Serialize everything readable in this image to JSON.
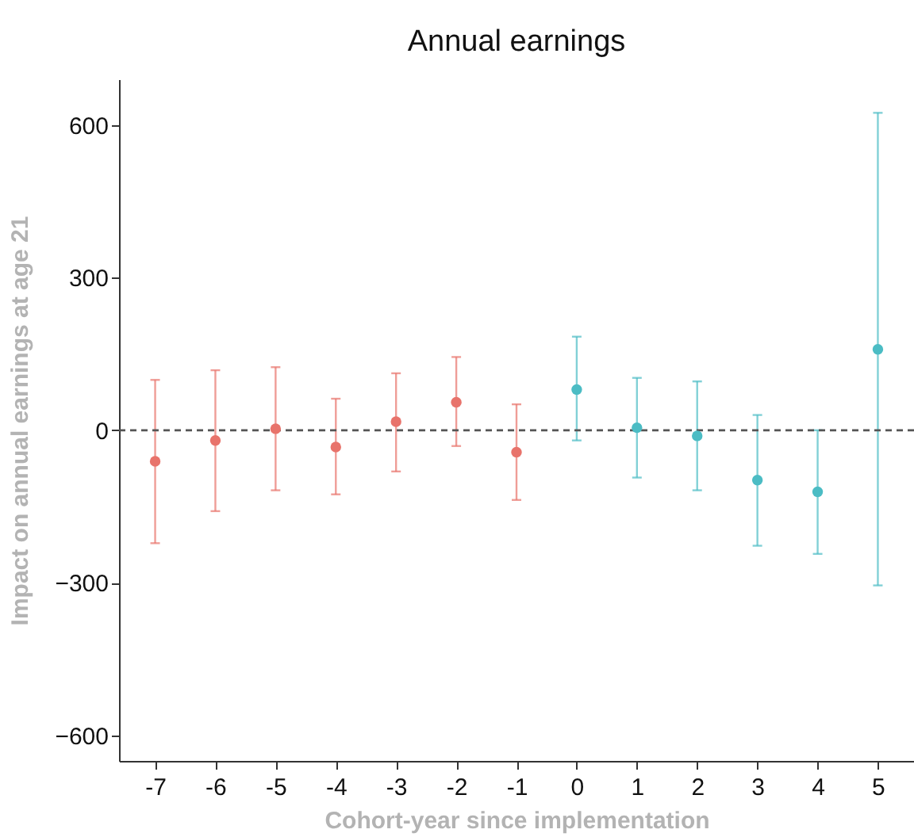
{
  "chart_data": {
    "type": "scatter",
    "title": "Annual earnings",
    "xlabel": "Cohort-year since implementation",
    "ylabel": "Impact on annual earnings at age 21",
    "categories": [
      "-7",
      "-6",
      "-5",
      "-4",
      "-3",
      "-2",
      "-1",
      "0",
      "1",
      "2",
      "3",
      "4",
      "5"
    ],
    "series": [
      {
        "color": "#e8736b",
        "values": [
          -61,
          -20,
          3,
          -33,
          17,
          55,
          -43,
          null,
          null,
          null,
          null,
          null,
          null
        ],
        "errors": [
          [
            -222,
            99
          ],
          [
            -159,
            118
          ],
          [
            -118,
            124
          ],
          [
            -126,
            62
          ],
          [
            -81,
            112
          ],
          [
            -31,
            144
          ],
          [
            -137,
            51
          ],
          null,
          null,
          null,
          null,
          null,
          null
        ]
      },
      {
        "color": "#4bbcc4",
        "values": [
          null,
          null,
          null,
          null,
          null,
          null,
          null,
          80,
          5,
          -11,
          -98,
          -121,
          159
        ],
        "errors": [
          null,
          null,
          null,
          null,
          null,
          null,
          null,
          [
            -20,
            184
          ],
          [
            -93,
            103
          ],
          [
            -118,
            96
          ],
          [
            -227,
            30
          ],
          [
            -243,
            0
          ],
          [
            -305,
            624
          ]
        ]
      }
    ],
    "ylim": [
      -650,
      690
    ],
    "yticks": [
      -600,
      -300,
      0,
      300,
      600
    ],
    "grid": false,
    "marker": "circle",
    "ref_lines": [
      {
        "axis": "y",
        "value": 0,
        "line_style": "dashed",
        "color": "#555555"
      }
    ]
  }
}
